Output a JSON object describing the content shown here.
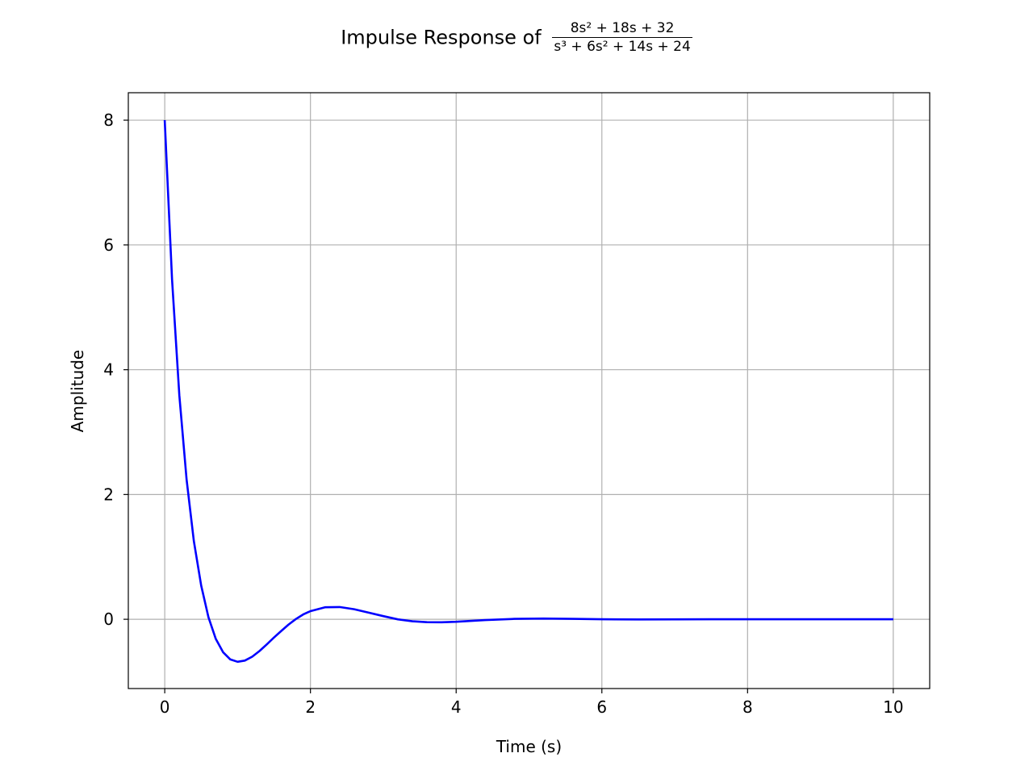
{
  "chart_data": {
    "type": "line",
    "title": "Impulse Response of",
    "title_fraction": {
      "numerator": "8s² + 18s + 32",
      "denominator": "s³ + 6s² + 14s + 24"
    },
    "xlabel": "Time (s)",
    "ylabel": "Amplitude",
    "xlim": [
      -0.5,
      10.5
    ],
    "ylim": [
      -1.11,
      8.44
    ],
    "xticks": [
      0,
      2,
      4,
      6,
      8,
      10
    ],
    "yticks": [
      0,
      2,
      4,
      6,
      8
    ],
    "grid": true,
    "series": [
      {
        "color": "#0000ff",
        "x": [
          0,
          0.1,
          0.2,
          0.3,
          0.4,
          0.5,
          0.6,
          0.7,
          0.8,
          0.9,
          1.0,
          1.1,
          1.2,
          1.3,
          1.4,
          1.5,
          1.6,
          1.7,
          1.8,
          1.9,
          2.0,
          2.2,
          2.4,
          2.6,
          2.8,
          3.0,
          3.2,
          3.4,
          3.6,
          3.8,
          4.0,
          4.4,
          4.8,
          5.2,
          5.6,
          6.0,
          6.5,
          7.0,
          7.5,
          8.0,
          9.0,
          10.0
        ],
        "y": [
          8.0,
          5.444,
          3.592,
          2.241,
          1.254,
          0.54,
          0.033,
          -0.311,
          -0.527,
          -0.643,
          -0.681,
          -0.661,
          -0.599,
          -0.509,
          -0.403,
          -0.292,
          -0.186,
          -0.084,
          0.004,
          0.077,
          0.131,
          0.192,
          0.196,
          0.161,
          0.106,
          0.05,
          -0.001,
          -0.032,
          -0.047,
          -0.048,
          -0.04,
          -0.013,
          0.007,
          0.012,
          0.007,
          0.0,
          -0.003,
          -0.001,
          0.0,
          0.0,
          0.0,
          0.0
        ]
      }
    ]
  }
}
